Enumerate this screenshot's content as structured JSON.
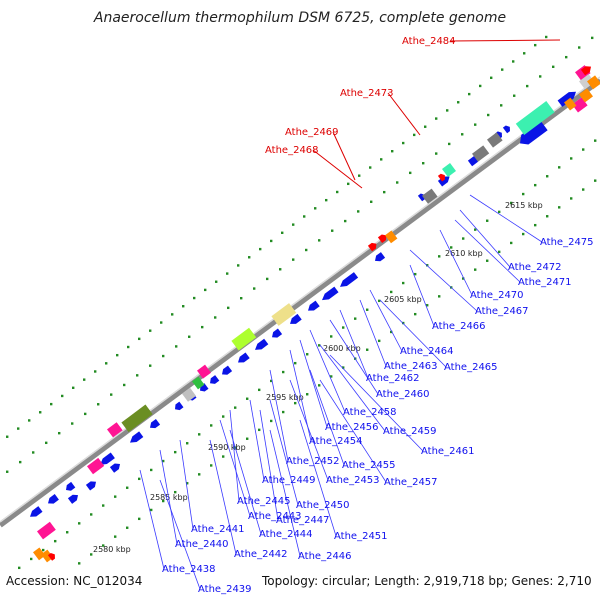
{
  "title": "Anaerocellum thermophilum DSM 6725, complete genome",
  "footer": {
    "accession": "Accession: NC_012034",
    "summary": "Topology: circular; Length: 2,919,718 bp; Genes: 2,710"
  },
  "colors": {
    "backbone": "#8a8a8a",
    "label_highlight": "#dd0000",
    "label_default": "#1010ee",
    "leader_default": "#3a3aff",
    "dot": "#228b22",
    "cds": "#0a14e6",
    "highlight_gene": "#ff0000",
    "trna": "#ff8c00",
    "rrna_magenta": "#ff1493",
    "misc_olive": "#6b8e23",
    "misc_gray": "#7a7a7a",
    "misc_khaki": "#eee08a",
    "misc_lime": "#adff2f",
    "misc_mint": "#3cf0b0"
  },
  "ticks": [
    "2580 kbp",
    "2585 kbp",
    "2590 kbp",
    "2595 kbp",
    "2600 kbp",
    "2605 kbp",
    "2610 kbp",
    "2615 kbp"
  ],
  "highlight_labels": [
    "Athe_2484",
    "Athe_2473",
    "Athe_2469",
    "Athe_2468"
  ],
  "gene_labels": [
    "Athe_2475",
    "Athe_2472",
    "Athe_2471",
    "Athe_2470",
    "Athe_2467",
    "Athe_2466",
    "Athe_2464",
    "Athe_2463",
    "Athe_2465",
    "Athe_2462",
    "Athe_2460",
    "Athe_2458",
    "Athe_2456",
    "Athe_2459",
    "Athe_2454",
    "Athe_2461",
    "Athe_2452",
    "Athe_2455",
    "Athe_2453",
    "Athe_2457",
    "Athe_2449",
    "Athe_2445",
    "Athe_2450",
    "Athe_2443",
    "Athe_2447",
    "Athe_2441",
    "Athe_2444",
    "Athe_2451",
    "Athe_2440",
    "Athe_2442",
    "Athe_2446",
    "Athe_2438",
    "Athe_2439"
  ]
}
